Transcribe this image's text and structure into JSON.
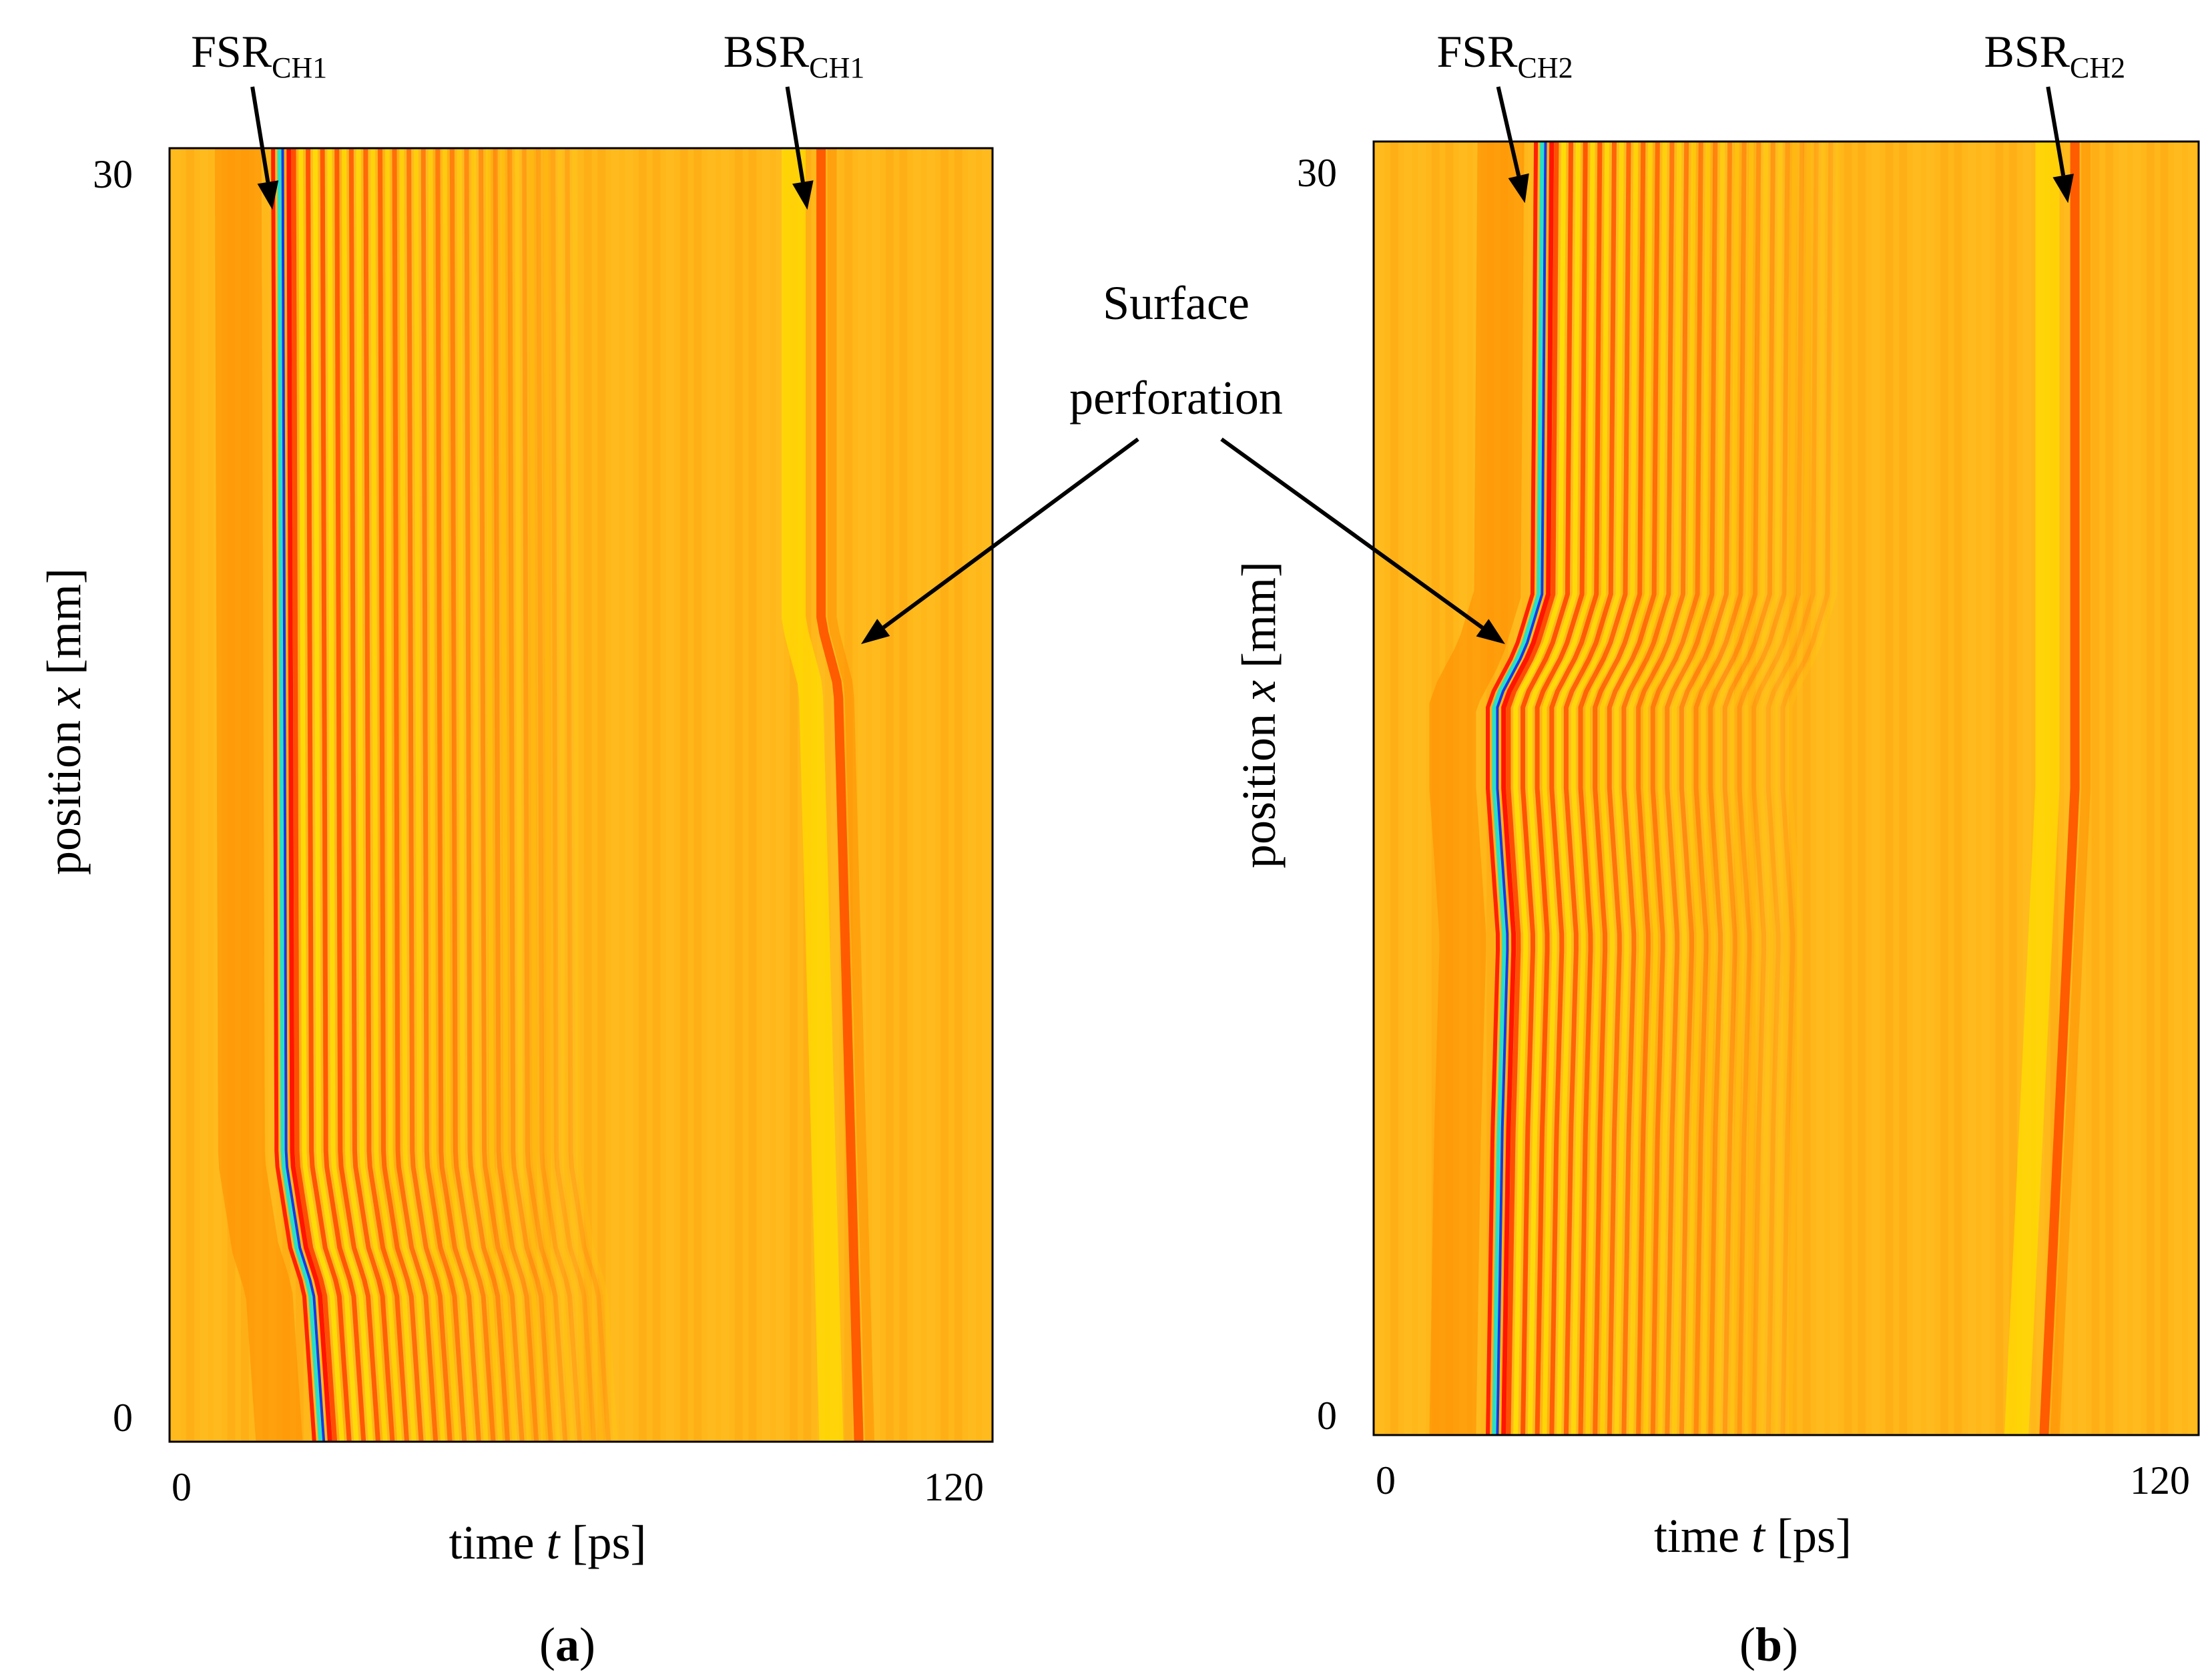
{
  "chart_data": [
    {
      "type": "heatmap",
      "panel": "a",
      "caption_letter": "a",
      "xlabel": {
        "prefix": "time ",
        "var": "t",
        "suffix": " [ps]"
      },
      "ylabel": {
        "prefix": "position ",
        "var": "x",
        "suffix": " [mm]"
      },
      "xlim": [
        0,
        120
      ],
      "ylim": [
        0,
        30
      ],
      "xticks": [
        "0",
        "120"
      ],
      "yticks": [
        "30",
        "0"
      ],
      "annotations": [
        {
          "base": "FSR",
          "sub": "CH1",
          "target_t": 15,
          "target_x": 29.5
        },
        {
          "base": "BSR",
          "sub": "CH1",
          "target_t": 93,
          "target_x": 29.5
        }
      ],
      "features": {
        "fsr_path": [
          [
            30,
            16
          ],
          [
            6.5,
            16.5
          ],
          [
            4.5,
            18.5
          ],
          [
            3.5,
            20.5
          ],
          [
            0,
            22
          ]
        ],
        "bsr_path": [
          [
            30,
            95
          ],
          [
            19,
            95
          ],
          [
            17.5,
            97.5
          ],
          [
            0,
            100.5
          ]
        ],
        "background_hex": "#ffb71a"
      }
    },
    {
      "type": "heatmap",
      "panel": "b",
      "caption_letter": "b",
      "xlabel": {
        "prefix": "time ",
        "var": "t",
        "suffix": " [ps]"
      },
      "ylabel": {
        "prefix": "position ",
        "var": "x",
        "suffix": " [mm]"
      },
      "xlim": [
        0,
        120
      ],
      "ylim": [
        0,
        30
      ],
      "xticks": [
        "0",
        "120"
      ],
      "yticks": [
        "30",
        "0"
      ],
      "annotations": [
        {
          "base": "FSR",
          "sub": "CH2",
          "target_t": 22,
          "target_x": 29.5
        },
        {
          "base": "BSR",
          "sub": "CH2",
          "target_t": 101,
          "target_x": 29.5
        }
      ],
      "features": {
        "fsr_path": [
          [
            30,
            24.5
          ],
          [
            19.5,
            24
          ],
          [
            18.2,
            21.5
          ],
          [
            17,
            17.5
          ],
          [
            15,
            17.5
          ],
          [
            11.5,
            19
          ],
          [
            7,
            18.2
          ],
          [
            0,
            17.5
          ]
        ],
        "bsr_path": [
          [
            30,
            102
          ],
          [
            15,
            102
          ],
          [
            5,
            99
          ],
          [
            0,
            97.5
          ]
        ],
        "background_hex": "#ffb71a"
      }
    }
  ],
  "shared_annotation": {
    "line1": "Surface",
    "line2": "perforation"
  },
  "colors": {
    "background": "#ffb71a",
    "red": "#ff3300",
    "light_yellow": "#ffe400",
    "cyan": "#26e0c8",
    "blue": "#1838e8"
  }
}
